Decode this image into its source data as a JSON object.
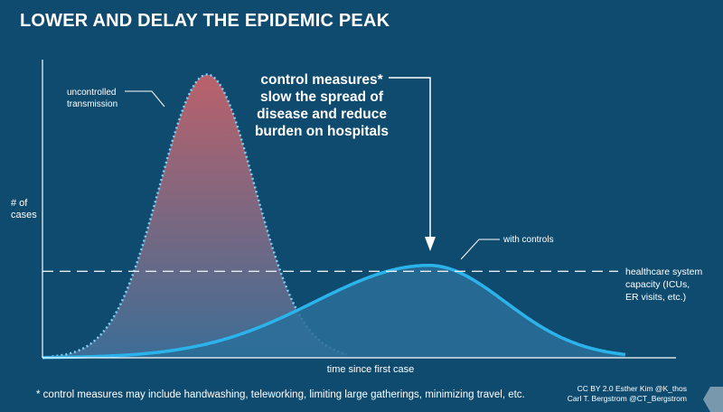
{
  "title": "LOWER AND DELAY THE EPIDEMIC PEAK",
  "colors": {
    "background": "#0f4b6e",
    "uncontrolled_top": "#c4626a",
    "uncontrolled_bottom": "#3f6f98",
    "controlled_line": "#2bb4ec",
    "controlled_fill": "#2a6f99",
    "capacity_line": "#e6edf2",
    "text": "#ffffff"
  },
  "annotations": {
    "uncontrolled": [
      "uncontrolled",
      "transmission"
    ],
    "control_measures": [
      "control measures*",
      "slow the spread of",
      "disease and reduce",
      "burden on hospitals"
    ],
    "with_controls": "with controls",
    "capacity": [
      "healthcare system",
      "capacity (ICUs,",
      "ER visits, etc.)"
    ]
  },
  "footnote": "* control measures may include handwashing, teleworking, limiting large gatherings, minimizing travel, etc.",
  "credits": [
    "CC BY 2.0  Esther  Kim  @K_thos",
    "Carl T. Bergstrom  @CT_Bergstrom"
  ],
  "chart_data": {
    "type": "area",
    "xlabel": "time since first case",
    "ylabel": "# of cases",
    "xlim": [
      0,
      100
    ],
    "ylim": [
      0,
      100
    ],
    "grid": false,
    "series": [
      {
        "key": "uncontrolled",
        "peak_x": 26,
        "peak_y": 95,
        "spread": 7.5
      },
      {
        "key": "controlled",
        "peak_x": 61,
        "peak_y": 31,
        "rise_spread": 18,
        "fall_spread": 12
      }
    ],
    "capacity_level": 29
  }
}
